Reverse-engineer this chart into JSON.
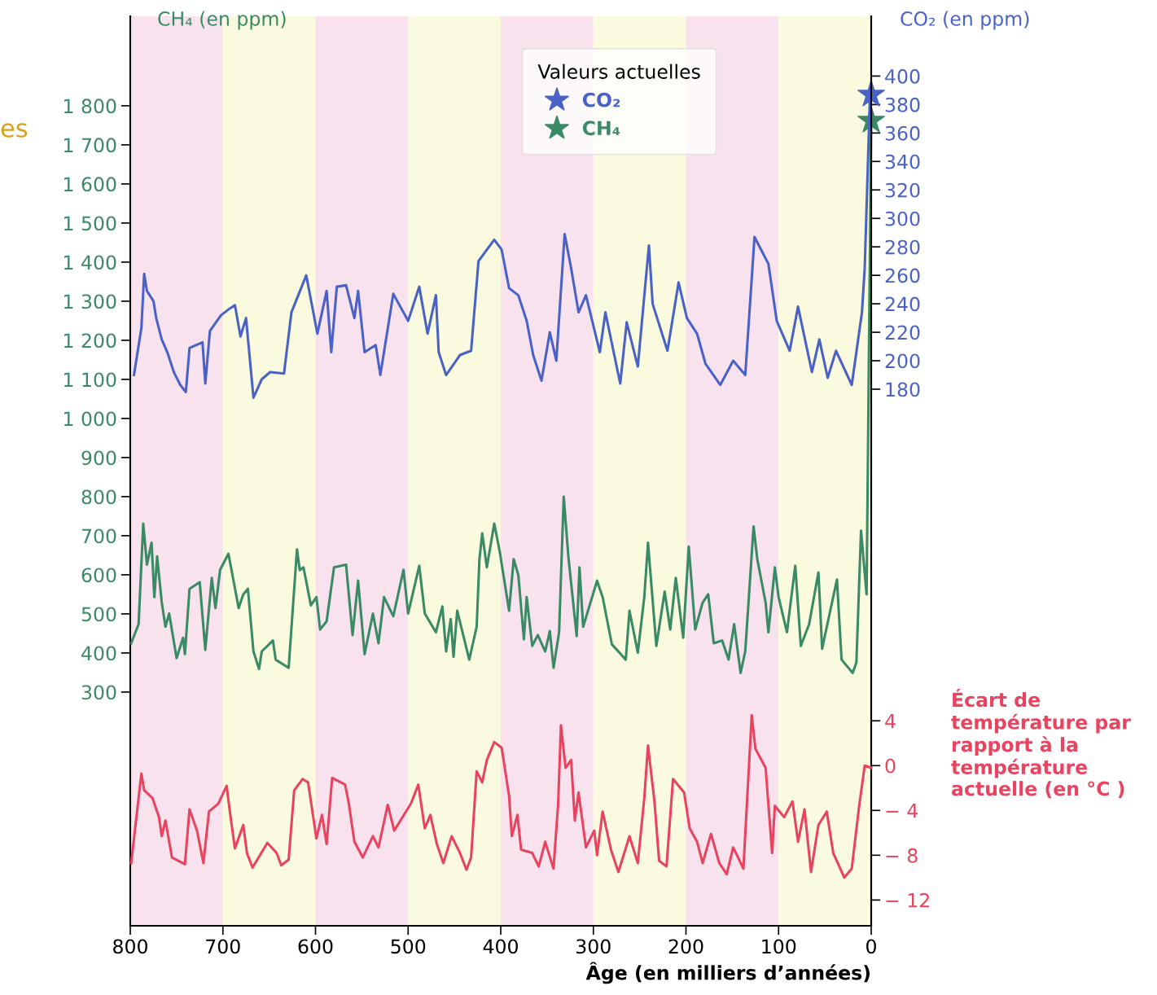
{
  "chart_data": {
    "type": "line",
    "xlabel": "Âge (en milliers d’années)",
    "ylabel": "CH₄ (en ppm)",
    "y2label": "CO₂ (en ppm)",
    "y3label": "Écart de température par rapport à la température actuelle (en °C )",
    "legend_title": "Valeurs actuelles",
    "legend": "top",
    "annotations": [
      "es"
    ],
    "xlim": [
      800,
      0
    ],
    "xticks": [
      800,
      700,
      600,
      500,
      400,
      300,
      200,
      100,
      0
    ],
    "ylim": [
      -298,
      2029
    ],
    "yticks": [
      300,
      400,
      500,
      600,
      700,
      800,
      900,
      {
        "value": 1000,
        "label": "1 000"
      },
      {
        "value": 1100,
        "label": "1 100"
      },
      {
        "value": 1200,
        "label": "1 200"
      },
      {
        "value": 1300,
        "label": "1 300"
      },
      {
        "value": 1400,
        "label": "1 400"
      },
      {
        "value": 1500,
        "label": "1 500"
      },
      {
        "value": 1600,
        "label": "1 600"
      },
      {
        "value": 1700,
        "label": "1 700"
      },
      {
        "value": 1800,
        "label": "1 800"
      }
    ],
    "y2lim": [
      -197,
      442
    ],
    "y2ticks": [
      180,
      200,
      220,
      240,
      260,
      280,
      300,
      320,
      340,
      360,
      380,
      400
    ],
    "y3lim": [
      -14.3,
      66.9
    ],
    "y3ticks": [
      {
        "value": -12,
        "label": "− 12"
      },
      {
        "value": -8,
        "label": "− 8"
      },
      {
        "value": -4,
        "label": "− 4"
      },
      0,
      4
    ],
    "bands": [
      {
        "axis": "x",
        "from": 800,
        "to": 700,
        "color": "#f8e2ee"
      },
      {
        "axis": "x",
        "from": 700,
        "to": 600,
        "color": "#fafade"
      },
      {
        "axis": "x",
        "from": 600,
        "to": 500,
        "color": "#f8e2ee"
      },
      {
        "axis": "x",
        "from": 500,
        "to": 400,
        "color": "#fafade"
      },
      {
        "axis": "x",
        "from": 400,
        "to": 300,
        "color": "#f8e2ee"
      },
      {
        "axis": "x",
        "from": 300,
        "to": 200,
        "color": "#fafade"
      },
      {
        "axis": "x",
        "from": 200,
        "to": 100,
        "color": "#f8e2ee"
      },
      {
        "axis": "x",
        "from": 100,
        "to": 0,
        "color": "#fafade"
      }
    ],
    "series": [
      {
        "axis": "y2",
        "color": "#4a62c6",
        "x": [
          796,
          788,
          785,
          782,
          775,
          772,
          766,
          760,
          753,
          746,
          740,
          736,
          722,
          719,
          714,
          702,
          694,
          687,
          681,
          675,
          667,
          658,
          649,
          634,
          626,
          610,
          598,
          588,
          583,
          577,
          567,
          558,
          554,
          547,
          535,
          530,
          516,
          500,
          488,
          479,
          470,
          467,
          459,
          444,
          432,
          424,
          407,
          399,
          391,
          381,
          372,
          365,
          356,
          347,
          340,
          331,
          324,
          316,
          308,
          293,
          287,
          271,
          264,
          252,
          240,
          236,
          220,
          208,
          199,
          188,
          179,
          163,
          149,
          136,
          126,
          111,
          102,
          88,
          79,
          64,
          56,
          47,
          38,
          21,
          10,
          7,
          1.5,
          0
        ],
        "values": [
          190,
          223,
          261,
          249,
          242,
          230,
          215,
          206,
          192,
          183,
          178,
          209,
          213,
          184,
          221,
          232,
          236,
          239,
          217,
          230,
          174,
          187,
          192,
          191,
          234,
          260,
          219,
          249,
          206,
          252,
          253,
          230,
          249,
          206,
          211,
          190,
          247,
          228,
          252,
          219,
          246,
          206,
          190,
          204,
          207,
          270,
          285,
          278,
          251,
          246,
          228,
          204,
          186,
          220,
          200,
          289,
          265,
          234,
          246,
          206,
          234,
          184,
          227,
          196,
          281,
          240,
          207,
          255,
          230,
          219,
          198,
          183,
          200,
          190,
          287,
          268,
          228,
          207,
          238,
          192,
          215,
          188,
          207,
          183,
          234,
          265,
          383,
          387
        ]
      },
      {
        "axis": "y",
        "color": "#3b8a66",
        "x": [
          799,
          791,
          786,
          782,
          777,
          774,
          771,
          766,
          762,
          758,
          750,
          743,
          741,
          736,
          725,
          719,
          712,
          708,
          703,
          694,
          683,
          678,
          673,
          667,
          661,
          658,
          646,
          643,
          629,
          620,
          617,
          613,
          605,
          599,
          595,
          588,
          580,
          567,
          560,
          554,
          547,
          538,
          532,
          526,
          516,
          505,
          500,
          488,
          482,
          470,
          463,
          459,
          454,
          451,
          447,
          434,
          426,
          423,
          420,
          415,
          407,
          401,
          391,
          386,
          381,
          375,
          372,
          366,
          360,
          352,
          347,
          343,
          337,
          332,
          327,
          318,
          315,
          311,
          296,
          290,
          280,
          265,
          261,
          252,
          245,
          241,
          232,
          223,
          217,
          211,
          203,
          197,
          190,
          182,
          176,
          170,
          161,
          154,
          148,
          141,
          136,
          127,
          123,
          114,
          111,
          104,
          100,
          91,
          82,
          76,
          67,
          57,
          53,
          37,
          32,
          20,
          16,
          11,
          5,
          0
        ],
        "values": [
          425,
          474,
          731,
          626,
          682,
          543,
          647,
          529,
          467,
          501,
          387,
          439,
          397,
          564,
          581,
          408,
          592,
          515,
          613,
          654,
          515,
          550,
          564,
          404,
          359,
          404,
          432,
          383,
          362,
          665,
          612,
          619,
          522,
          543,
          460,
          481,
          619,
          626,
          446,
          585,
          397,
          501,
          425,
          543,
          494,
          613,
          501,
          623,
          501,
          453,
          519,
          404,
          487,
          390,
          508,
          383,
          467,
          640,
          706,
          619,
          731,
          658,
          508,
          640,
          599,
          435,
          543,
          418,
          446,
          404,
          456,
          362,
          453,
          800,
          647,
          443,
          619,
          467,
          585,
          543,
          422,
          383,
          508,
          401,
          543,
          682,
          418,
          557,
          460,
          592,
          439,
          672,
          460,
          529,
          550,
          425,
          432,
          383,
          474,
          349,
          404,
          724,
          640,
          529,
          453,
          619,
          543,
          453,
          623,
          418,
          474,
          606,
          411,
          588,
          383,
          349,
          376,
          713,
          550,
          1760
        ]
      },
      {
        "axis": "y3",
        "color": "#e8435f",
        "x": [
          799,
          788,
          785,
          776,
          769,
          766,
          762,
          755,
          741,
          736,
          728,
          721,
          715,
          705,
          696,
          692,
          687,
          678,
          674,
          668,
          652,
          642,
          637,
          629,
          623,
          614,
          608,
          599,
          593,
          588,
          582,
          568,
          564,
          558,
          549,
          538,
          532,
          522,
          515,
          506,
          497,
          489,
          482,
          476,
          469,
          462,
          453,
          444,
          437,
          432,
          426,
          420,
          415,
          407,
          399,
          391,
          388,
          382,
          378,
          366,
          359,
          352,
          343,
          338,
          335,
          330,
          324,
          320,
          316,
          308,
          299,
          296,
          290,
          281,
          273,
          261,
          252,
          245,
          241,
          234,
          229,
          221,
          214,
          202,
          196,
          188,
          182,
          173,
          164,
          156,
          149,
          138,
          129,
          125,
          114,
          107,
          104,
          94,
          85,
          79,
          72,
          65,
          57,
          48,
          41,
          29,
          21,
          13,
          7,
          0
        ],
        "values": [
          -8.7,
          -0.7,
          -2.2,
          -2.9,
          -4.6,
          -6.3,
          -4.9,
          -8.2,
          -8.8,
          -3.9,
          -5.8,
          -8.7,
          -4.1,
          -3.4,
          -1.8,
          -4.4,
          -7.4,
          -5.3,
          -7.8,
          -9.1,
          -6.9,
          -7.8,
          -8.9,
          -8.4,
          -2.2,
          -1.2,
          -1.5,
          -6.5,
          -4.4,
          -7.0,
          -1.1,
          -1.7,
          -3.4,
          -6.8,
          -8.2,
          -6.3,
          -7.3,
          -3.5,
          -5.8,
          -4.6,
          -3.4,
          -1.7,
          -5.6,
          -4.4,
          -7.0,
          -8.7,
          -6.3,
          -7.8,
          -9.3,
          -8.2,
          -0.5,
          -1.5,
          0.5,
          2.1,
          1.6,
          -2.7,
          -6.3,
          -4.4,
          -7.5,
          -7.8,
          -9.0,
          -6.8,
          -9.2,
          -3.4,
          3.6,
          -0.2,
          0.5,
          -4.9,
          -2.4,
          -7.3,
          -5.8,
          -8.0,
          -4.1,
          -7.5,
          -9.5,
          -6.3,
          -8.7,
          -2.9,
          1.8,
          -3.2,
          -8.5,
          -9.0,
          -1.2,
          -2.4,
          -5.6,
          -6.8,
          -8.7,
          -6.1,
          -8.7,
          -9.7,
          -7.3,
          -9.2,
          4.5,
          1.5,
          -0.2,
          -7.8,
          -3.6,
          -4.6,
          -3.2,
          -6.8,
          -3.9,
          -9.5,
          -5.3,
          -4.1,
          -7.8,
          -10.0,
          -9.2,
          -3.6,
          0.0,
          -0.2
        ]
      },
      {
        "type": "scatter",
        "axis": "y2",
        "name": "CO₂",
        "marker": "star",
        "color": "#4a62c6",
        "x": [
          0
        ],
        "values": [
          387
        ]
      },
      {
        "type": "scatter",
        "axis": "y",
        "name": "CH₄",
        "marker": "star",
        "color": "#3b8a66",
        "x": [
          0
        ],
        "values": [
          1762
        ]
      }
    ]
  }
}
